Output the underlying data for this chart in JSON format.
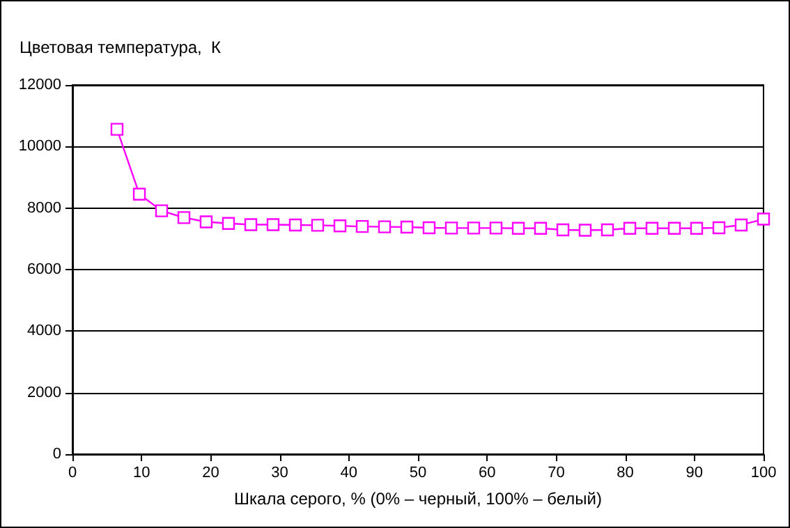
{
  "chart_data": {
    "type": "line",
    "ylabel": "Цветовая температура,  К",
    "xlabel": "Шкала серого, % (0% – черный, 100% – белый)",
    "x": [
      6.45,
      9.68,
      12.9,
      16.13,
      19.35,
      22.58,
      25.81,
      29.03,
      32.26,
      35.48,
      38.71,
      41.94,
      45.16,
      48.39,
      51.61,
      54.84,
      58.06,
      61.29,
      64.52,
      67.74,
      70.97,
      74.19,
      77.42,
      80.65,
      83.87,
      87.1,
      90.32,
      93.55,
      96.77,
      100
    ],
    "series": [
      {
        "color": "#ff00ff",
        "values": [
          10560,
          8450,
          7910,
          7690,
          7550,
          7500,
          7460,
          7460,
          7450,
          7440,
          7420,
          7400,
          7390,
          7380,
          7360,
          7350,
          7350,
          7350,
          7340,
          7340,
          7290,
          7280,
          7290,
          7340,
          7340,
          7340,
          7340,
          7360,
          7450,
          7640
        ]
      }
    ],
    "xlim": [
      0,
      100
    ],
    "xticks": [
      0,
      10,
      20,
      30,
      40,
      50,
      60,
      70,
      80,
      90,
      100
    ],
    "ylim": [
      0,
      12000
    ],
    "yticks": [
      0,
      2000,
      4000,
      6000,
      8000,
      10000,
      12000
    ],
    "grid": "y",
    "marker": "square",
    "line_style": "solid"
  }
}
